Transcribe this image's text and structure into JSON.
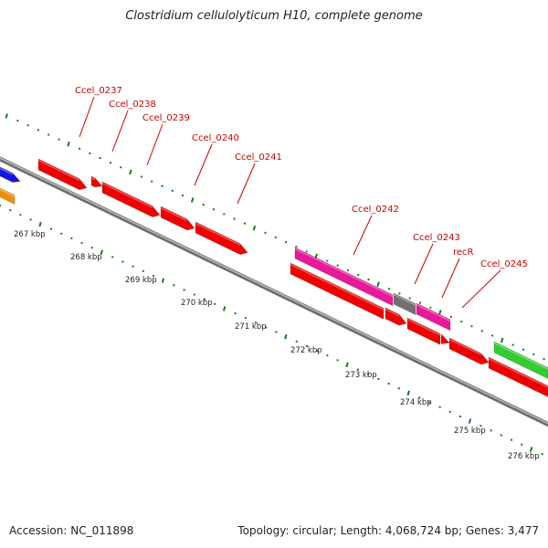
{
  "header": {
    "title": "Clostridium cellulolyticum H10, complete genome"
  },
  "footer": {
    "accession": "Accession: NC_011898",
    "summary": "Topology: circular; Length: 4,068,724 bp; Genes: 3,477"
  },
  "colors": {
    "backbone": "#8f8f8f",
    "tick": "#1a7a1a",
    "label_text": "#cc0000",
    "label_line": "#cc0000",
    "gene_red": "#ee0000",
    "gene_pink": "#e8189a",
    "gene_gray": "#707070",
    "gene_green": "#33cc33",
    "gene_blue": "#1515dd",
    "gene_orange": "#f0900a"
  },
  "scale_labels": [
    "267 kbp",
    "268 kbp",
    "269 kbp",
    "270 kbp",
    "271 kbp",
    "272 kbp",
    "273 kbp",
    "274 kbp",
    "275 kbp",
    "276 kbp"
  ],
  "gene_labels": [
    "Ccel_0237",
    "Ccel_0238",
    "Ccel_0239",
    "Ccel_0240",
    "Ccel_0241",
    "Ccel_0242",
    "Ccel_0243",
    "recR",
    "Ccel_0245"
  ]
}
